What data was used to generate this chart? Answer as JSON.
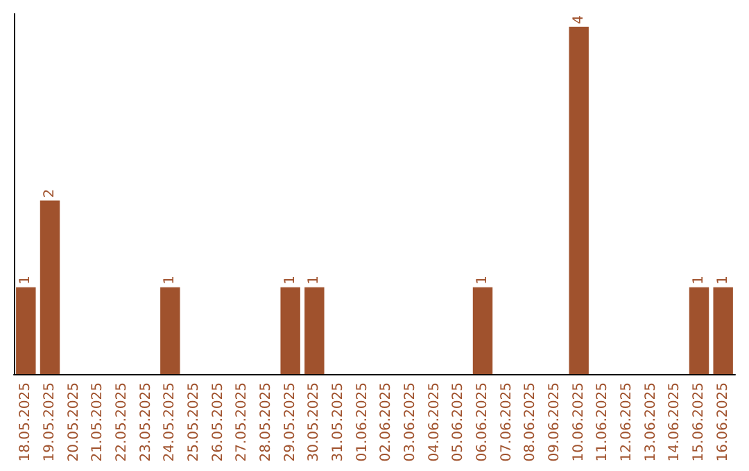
{
  "chart_data": {
    "type": "bar",
    "categories": [
      "18.05.2025",
      "19.05.2025",
      "20.05.2025",
      "21.05.2025",
      "22.05.2025",
      "23.05.2025",
      "24.05.2025",
      "25.05.2025",
      "26.05.2025",
      "27.05.2025",
      "28.05.2025",
      "29.05.2025",
      "30.05.2025",
      "31.05.2025",
      "01.06.2025",
      "02.06.2025",
      "03.06.2025",
      "04.06.2025",
      "05.06.2025",
      "06.06.2025",
      "07.06.2025",
      "08.06.2025",
      "09.06.2025",
      "10.06.2025",
      "11.06.2025",
      "12.06.2025",
      "13.06.2025",
      "14.06.2025",
      "15.06.2025",
      "16.06.2025"
    ],
    "values": [
      1,
      2,
      0,
      0,
      0,
      0,
      1,
      0,
      0,
      0,
      0,
      1,
      1,
      0,
      0,
      0,
      0,
      0,
      0,
      1,
      0,
      0,
      0,
      4,
      0,
      0,
      0,
      0,
      1,
      1
    ],
    "value_labels": [
      "1",
      "2",
      null,
      null,
      null,
      null,
      "1",
      null,
      null,
      null,
      null,
      "1",
      "1",
      null,
      null,
      null,
      null,
      null,
      null,
      "1",
      null,
      null,
      null,
      "4",
      null,
      null,
      null,
      null,
      "1",
      "1"
    ],
    "color": "#a0522d",
    "ylim": [
      0,
      4.15
    ],
    "grid": false
  }
}
